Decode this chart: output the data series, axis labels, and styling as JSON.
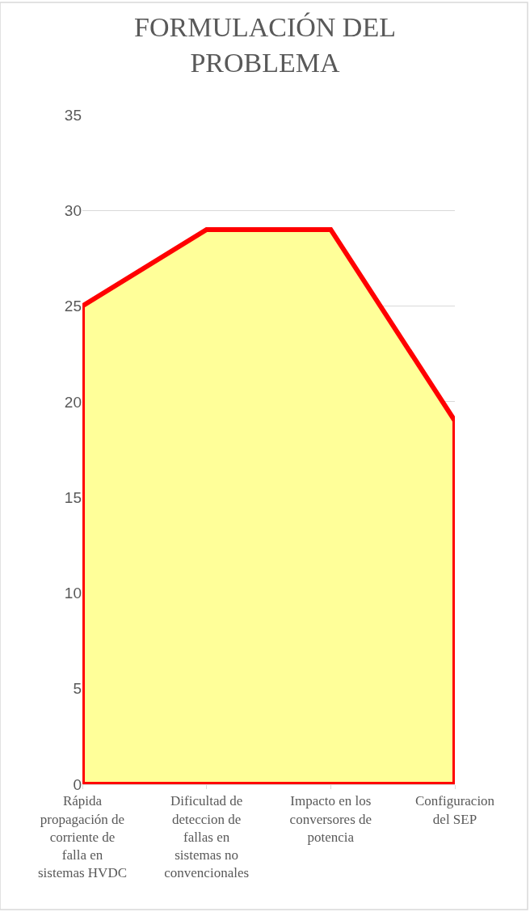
{
  "chart_data": {
    "type": "area",
    "title": "FORMULACIÓN DEL PROBLEMA",
    "categories": [
      "Rápida propagación de corriente de falla en sistemas HVDC",
      "Dificultad de deteccion de fallas en sistemas no convencionales",
      "Impacto en los conversores de potencia",
      "Configuracion del SEP"
    ],
    "series": [
      {
        "color": "#ffff99",
        "values": [
          25,
          29,
          29,
          19
        ]
      }
    ],
    "ylim": [
      0,
      35
    ],
    "yticks": [
      0,
      5,
      10,
      15,
      20,
      25,
      30,
      35
    ],
    "grid": "y"
  }
}
